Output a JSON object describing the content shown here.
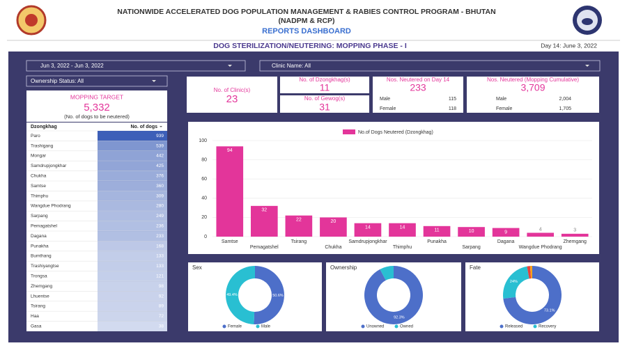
{
  "header": {
    "title": "NATIONWIDE ACCELERATED DOG POPULATION MANAGEMENT & RABIES CONTROL PROGRAM - BHUTAN",
    "subtitle": "(NADPM & RCP)",
    "dashboard": "REPORTS DASHBOARD",
    "section": "DOG STERILIZATION/NEUTERING: MOPPING PHASE - I",
    "day": "Day 14: June 3, 2022"
  },
  "filters": {
    "date": "Jun 3, 2022 - Jun 3, 2022",
    "clinic": "Clinic Name: All",
    "ownership": "Ownership Status: All"
  },
  "target": {
    "label": "MOPPING TARGET",
    "value": "5,332",
    "note": "(No. of dogs to be neutered)"
  },
  "kpis": {
    "clinics": {
      "label": "No. of Clinic(s)",
      "value": 23
    },
    "dzongkhags": {
      "label": "No. of Dzongkhag(s)",
      "value": 11
    },
    "gewogs": {
      "label": "No. of Gewog(s)",
      "value": 31
    },
    "day": {
      "label": "Nos. Neutered on Day 14",
      "total": 233,
      "male_label": "Male",
      "male": 115,
      "female_label": "Female",
      "female": 118
    },
    "cumulative": {
      "label": "Nos. Neutered (Mopping Cumulative)",
      "total": "3,709",
      "male_label": "Male",
      "male": "2,004",
      "female_label": "Female",
      "female": "1,705"
    }
  },
  "table": {
    "columns": [
      "Dzongkhag",
      "No. of dogs"
    ],
    "rows": [
      [
        "Paro",
        939
      ],
      [
        "Trashigang",
        539
      ],
      [
        "Mongar",
        442
      ],
      [
        "Samdrupjongkhar",
        425
      ],
      [
        "Chukha",
        376
      ],
      [
        "Samtse",
        360
      ],
      [
        "Thimphu",
        309
      ],
      [
        "Wangdue Phodrang",
        280
      ],
      [
        "Sarpang",
        249
      ],
      [
        "Pemagatshel",
        236
      ],
      [
        "Dagana",
        233
      ],
      [
        "Punakha",
        168
      ],
      [
        "Bumthang",
        133
      ],
      [
        "Trashiyangtse",
        133
      ],
      [
        "Trongsa",
        121
      ],
      [
        "Zhemgang",
        98
      ],
      [
        "Lhuentse",
        92
      ],
      [
        "Tsirang",
        89
      ],
      [
        "Haa",
        72
      ],
      [
        "Gasa",
        38
      ]
    ]
  },
  "chart_data": [
    {
      "type": "bar",
      "categories": [
        "Samtse",
        "Pemagatshel",
        "Tsirang",
        "Chukha",
        "Samdrupjongkhar",
        "Thimphu",
        "Punakha",
        "Sarpang",
        "Dagana",
        "Wangdue Phodrang",
        "Zhemgang"
      ],
      "series": [
        {
          "name": "No.of Dogs Neutered (Dzongkhag)",
          "color": "#e3359a",
          "values": [
            94,
            32,
            22,
            20,
            14,
            14,
            11,
            10,
            9,
            4,
            3
          ]
        }
      ],
      "ylim": [
        0,
        100
      ],
      "yticks": [
        0,
        20,
        40,
        60,
        80,
        100
      ],
      "grid": true
    },
    {
      "type": "pie",
      "title": "Sex",
      "categories": [
        "Female",
        "Male"
      ],
      "values": [
        50.6,
        49.4
      ],
      "value_labels": [
        "50.6%",
        "49.4%"
      ],
      "colors": [
        "#4d6fc9",
        "#29bfd2"
      ]
    },
    {
      "type": "pie",
      "title": "Ownership",
      "categories": [
        "Unowned",
        "Owned"
      ],
      "values": [
        92.3,
        7.7
      ],
      "value_labels": [
        "92.3%",
        null
      ],
      "colors": [
        "#4d6fc9",
        "#29bfd2"
      ]
    },
    {
      "type": "pie",
      "title": "Fate",
      "categories": [
        "Released",
        "Recovery",
        null,
        null
      ],
      "values": [
        73.1,
        24,
        1.7,
        1.2
      ],
      "value_labels": [
        "73.1%",
        "24%",
        null,
        null
      ],
      "colors": [
        "#4d6fc9",
        "#29bfd2",
        "#e8413c",
        "#f7a21b"
      ]
    }
  ]
}
